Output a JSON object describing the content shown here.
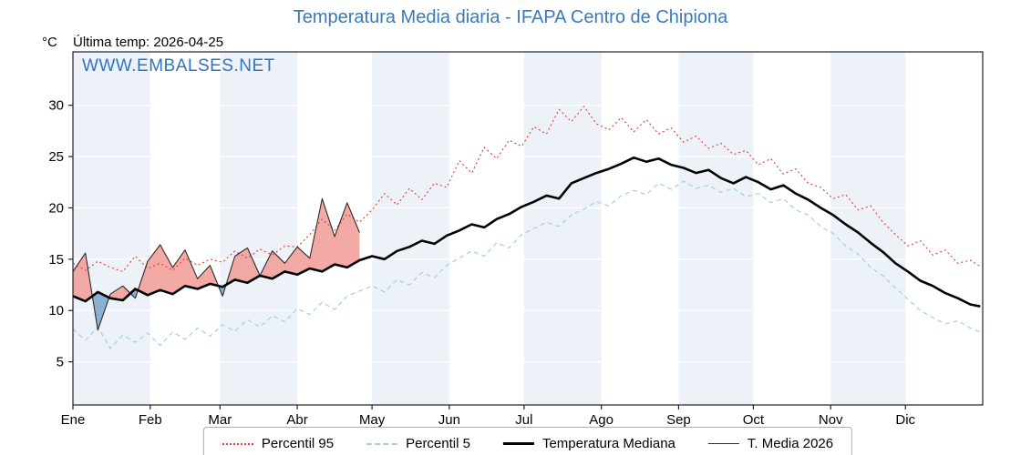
{
  "title": "Temperatura Media diaria - IFAPA Centro de Chipiona",
  "unit": "°C",
  "last_temp": "Última temp: 2026-04-25",
  "watermark": "WWW.EMBALSES.NET",
  "colors": {
    "title": "#3b7ab8",
    "watermark": "#2f74c0",
    "band": "#edf2f8",
    "grid": "#ffffff",
    "axis": "#222222",
    "fill_above": "#f2a09a",
    "fill_below": "#7fa8cc"
  },
  "chart_data": {
    "type": "line",
    "title": "Temperatura Media diaria - IFAPA Centro de Chipiona",
    "x_axis": {
      "months": [
        "Ene",
        "Feb",
        "Mar",
        "Abr",
        "May",
        "Jun",
        "Jul",
        "Ago",
        "Sep",
        "Oct",
        "Nov",
        "Dic"
      ],
      "month_start_days": [
        0,
        31,
        59,
        90,
        120,
        151,
        181,
        212,
        243,
        273,
        304,
        334
      ],
      "shaded_months": [
        0,
        2,
        4,
        6,
        8,
        10
      ],
      "days_in_year": 365
    },
    "y_axis": {
      "label": "°C",
      "ticks": [
        5,
        10,
        15,
        20,
        25,
        30
      ],
      "range": [
        0.8,
        35.2
      ]
    },
    "legend": [
      {
        "label": "Percentil 95"
      },
      {
        "label": "Percentil 5"
      },
      {
        "label": "Temperatura Mediana"
      },
      {
        "label": "T. Media 2026"
      }
    ],
    "fill_between": {
      "series_a": "T. Media 2026",
      "series_b": "Temperatura Mediana",
      "above_color": "#f2a09a",
      "below_color": "#7fa8cc"
    },
    "series": [
      {
        "name": "Percentil 95",
        "style": "dotted",
        "color": "#e03a3a",
        "width": 1.1,
        "dash": "2 3",
        "days": [
          0,
          5,
          10,
          15,
          20,
          25,
          30,
          35,
          40,
          45,
          50,
          55,
          60,
          65,
          70,
          75,
          80,
          85,
          90,
          95,
          100,
          105,
          110,
          115,
          120,
          125,
          130,
          135,
          140,
          145,
          150,
          155,
          160,
          165,
          170,
          175,
          180,
          185,
          190,
          195,
          200,
          205,
          210,
          215,
          220,
          225,
          230,
          235,
          240,
          245,
          250,
          255,
          260,
          265,
          270,
          275,
          280,
          285,
          290,
          295,
          300,
          305,
          310,
          315,
          320,
          325,
          330,
          335,
          340,
          345,
          350,
          355,
          360,
          364
        ],
        "values": [
          14.6,
          13.9,
          14.8,
          14.2,
          13.8,
          15.3,
          14.1,
          14.6,
          13.9,
          15.1,
          14.4,
          15.0,
          14.7,
          15.8,
          15.1,
          16.0,
          15.4,
          16.3,
          16.2,
          17.4,
          18.9,
          17.8,
          19.4,
          18.6,
          19.8,
          21.4,
          20.3,
          21.9,
          20.8,
          22.4,
          22.0,
          24.6,
          23.4,
          25.9,
          24.8,
          26.6,
          26.0,
          27.9,
          27.2,
          29.6,
          28.4,
          29.9,
          28.2,
          27.6,
          28.8,
          27.4,
          28.6,
          27.2,
          27.8,
          26.4,
          27.0,
          25.8,
          26.3,
          25.2,
          25.6,
          24.2,
          24.8,
          23.3,
          23.8,
          22.4,
          22.0,
          20.9,
          21.3,
          19.8,
          20.2,
          18.6,
          17.4,
          16.3,
          16.8,
          15.4,
          15.9,
          14.6,
          14.9,
          14.3
        ]
      },
      {
        "name": "Percentil 5",
        "style": "dashed",
        "color": "#a3cfe0",
        "width": 1.2,
        "dash": "5 4",
        "days": [
          0,
          5,
          10,
          15,
          20,
          25,
          30,
          35,
          40,
          45,
          50,
          55,
          60,
          65,
          70,
          75,
          80,
          85,
          90,
          95,
          100,
          105,
          110,
          115,
          120,
          125,
          130,
          135,
          140,
          145,
          150,
          155,
          160,
          165,
          170,
          175,
          180,
          185,
          190,
          195,
          200,
          205,
          210,
          215,
          220,
          225,
          230,
          235,
          240,
          245,
          250,
          255,
          260,
          265,
          270,
          275,
          280,
          285,
          290,
          295,
          300,
          305,
          310,
          315,
          320,
          325,
          330,
          335,
          340,
          345,
          350,
          355,
          360,
          364
        ],
        "values": [
          8.2,
          7.1,
          8.4,
          6.3,
          7.6,
          6.9,
          7.8,
          6.6,
          7.9,
          7.2,
          8.3,
          7.5,
          8.6,
          8.0,
          9.1,
          8.4,
          9.5,
          8.9,
          10.2,
          9.6,
          10.8,
          10.1,
          11.4,
          11.9,
          12.4,
          11.8,
          13.0,
          12.5,
          13.7,
          13.2,
          14.4,
          15.1,
          15.8,
          15.3,
          16.6,
          16.1,
          17.4,
          18.0,
          18.6,
          18.2,
          19.3,
          19.9,
          20.6,
          20.2,
          21.2,
          21.7,
          21.3,
          22.4,
          21.8,
          22.6,
          21.9,
          22.2,
          21.5,
          21.9,
          21.1,
          21.4,
          20.5,
          20.9,
          19.8,
          19.3,
          18.2,
          17.5,
          16.3,
          15.5,
          14.2,
          13.4,
          12.2,
          11.1,
          10.0,
          9.3,
          8.7,
          9.0,
          8.3,
          7.9
        ]
      },
      {
        "name": "Temperatura Mediana",
        "style": "solid-thick",
        "color": "#000000",
        "width": 2.6,
        "dash": "",
        "days": [
          0,
          5,
          10,
          15,
          20,
          25,
          30,
          35,
          40,
          45,
          50,
          55,
          60,
          65,
          70,
          75,
          80,
          85,
          90,
          95,
          100,
          105,
          110,
          115,
          120,
          125,
          130,
          135,
          140,
          145,
          150,
          155,
          160,
          165,
          170,
          175,
          180,
          185,
          190,
          195,
          200,
          205,
          210,
          215,
          220,
          225,
          230,
          235,
          240,
          245,
          250,
          255,
          260,
          265,
          270,
          275,
          280,
          285,
          290,
          295,
          300,
          305,
          310,
          315,
          320,
          325,
          330,
          335,
          340,
          345,
          350,
          355,
          360,
          364
        ],
        "values": [
          11.4,
          10.9,
          11.8,
          11.2,
          11.0,
          12.1,
          11.5,
          12.0,
          11.6,
          12.4,
          12.1,
          12.6,
          12.3,
          13.0,
          12.7,
          13.4,
          13.1,
          13.8,
          13.5,
          14.1,
          13.8,
          14.5,
          14.2,
          14.9,
          15.3,
          15.0,
          15.8,
          16.2,
          16.8,
          16.5,
          17.3,
          17.8,
          18.4,
          18.1,
          18.9,
          19.4,
          20.1,
          20.6,
          21.2,
          20.9,
          22.4,
          22.9,
          23.4,
          23.8,
          24.3,
          24.9,
          24.5,
          24.8,
          24.2,
          23.9,
          23.4,
          23.7,
          22.9,
          22.4,
          23.0,
          22.5,
          21.8,
          22.2,
          21.4,
          20.8,
          20.0,
          19.3,
          18.4,
          17.6,
          16.6,
          15.7,
          14.6,
          13.8,
          12.9,
          12.4,
          11.7,
          11.2,
          10.6,
          10.4
        ]
      },
      {
        "name": "T. Media 2026",
        "style": "solid-thin",
        "color": "#2b2b2b",
        "width": 1.1,
        "dash": "",
        "days": [
          0,
          5,
          10,
          15,
          20,
          25,
          30,
          35,
          40,
          45,
          50,
          55,
          60,
          65,
          70,
          75,
          80,
          85,
          90,
          95,
          100,
          105,
          110,
          115
        ],
        "values": [
          13.8,
          15.6,
          8.1,
          11.6,
          12.4,
          11.2,
          14.8,
          16.4,
          14.2,
          15.9,
          13.1,
          14.4,
          11.4,
          15.3,
          16.1,
          13.4,
          15.8,
          14.6,
          16.2,
          15.1,
          20.9,
          17.2,
          20.5,
          17.6
        ]
      }
    ]
  }
}
